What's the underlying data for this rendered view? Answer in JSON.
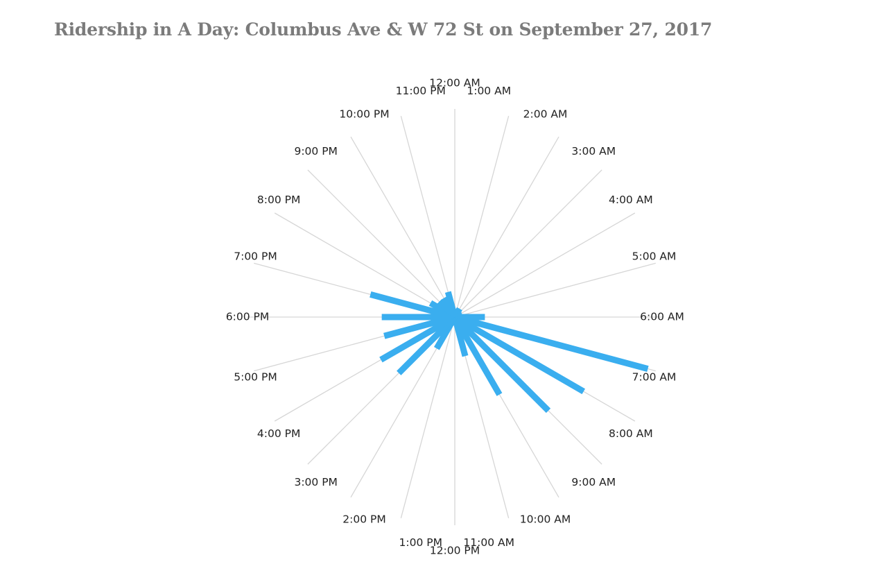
{
  "chart_data": {
    "type": "radial-bar",
    "title": "Ridership in A Day:  Columbus Ave & W 72 St on September 27, 2017",
    "categories": [
      "12:00 AM",
      "1:00 AM",
      "2:00 AM",
      "3:00 AM",
      "4:00 AM",
      "5:00 AM",
      "6:00 AM",
      "7:00 AM",
      "8:00 AM",
      "9:00 AM",
      "10:00 AM",
      "11:00 AM",
      "12:00 PM",
      "1:00 PM",
      "2:00 PM",
      "3:00 PM",
      "4:00 PM",
      "5:00 PM",
      "6:00 PM",
      "7:00 PM",
      "8:00 PM",
      "9:00 PM",
      "10:00 PM",
      "11:00 PM"
    ],
    "values": [
      0,
      0,
      2,
      0,
      0,
      1,
      12,
      95,
      70,
      62,
      41,
      17,
      0,
      0,
      15,
      36,
      39,
      33,
      33,
      40,
      11,
      8,
      8,
      10
    ],
    "rlim": [
      0,
      100
    ],
    "bar_color": "#3aaeef",
    "spoke_color": "#d6d6d6",
    "grid": false,
    "legend": "none"
  }
}
